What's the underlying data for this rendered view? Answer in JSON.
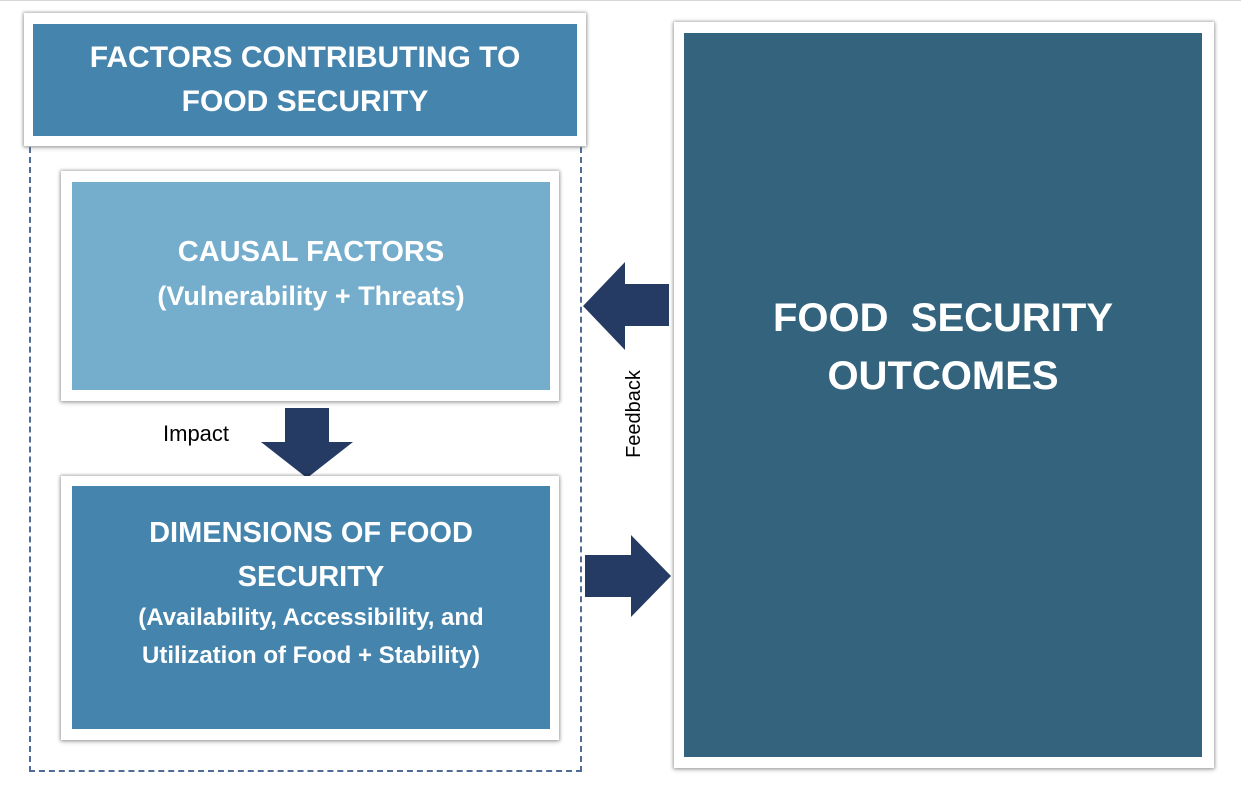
{
  "colors": {
    "header_fill": "#4585ad",
    "causal_fill": "#75adcd",
    "dimensions_fill": "#4585ad",
    "outcomes_fill": "#33637d",
    "arrow_fill": "#263b63",
    "dashed_border": "#4f6b96"
  },
  "header": {
    "line1": "FACTORS CONTRIBUTING TO",
    "line2": "FOOD SECURITY"
  },
  "causal_factors": {
    "title": "CAUSAL FACTORS",
    "subtitle": "(Vulnerability + Threats)"
  },
  "dimensions": {
    "title_line1": "DIMENSIONS OF FOOD",
    "title_line2": "SECURITY",
    "detail_line1": "(Availability, Accessibility, and",
    "detail_line2": "Utilization of Food + Stability)"
  },
  "outcomes": {
    "line1": "FOOD  SECURITY",
    "line2": "OUTCOMES"
  },
  "labels": {
    "impact": "Impact",
    "feedback": "Feedback"
  }
}
